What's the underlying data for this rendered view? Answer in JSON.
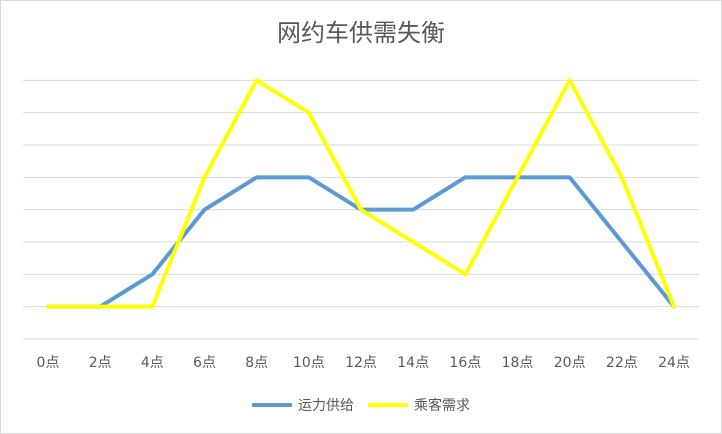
{
  "chart_data": {
    "type": "line",
    "title": "网约车供需失衡",
    "categories": [
      "0点",
      "2点",
      "4点",
      "6点",
      "8点",
      "10点",
      "12点",
      "14点",
      "16点",
      "18点",
      "20点",
      "22点",
      "24点"
    ],
    "series": [
      {
        "name": "运力供给",
        "color": "#5b9bd5",
        "values": [
          1,
          1,
          2,
          4,
          5,
          5,
          4,
          4,
          5,
          5,
          5,
          3,
          1
        ]
      },
      {
        "name": "乘客需求",
        "color": "#ffff00",
        "values": [
          1,
          1,
          1,
          5,
          8,
          7,
          4,
          3,
          2,
          5,
          8,
          5,
          1
        ]
      }
    ],
    "ylim": [
      0,
      9
    ],
    "grid": true,
    "y_tick_labels_visible": false,
    "legend": "bottom"
  }
}
